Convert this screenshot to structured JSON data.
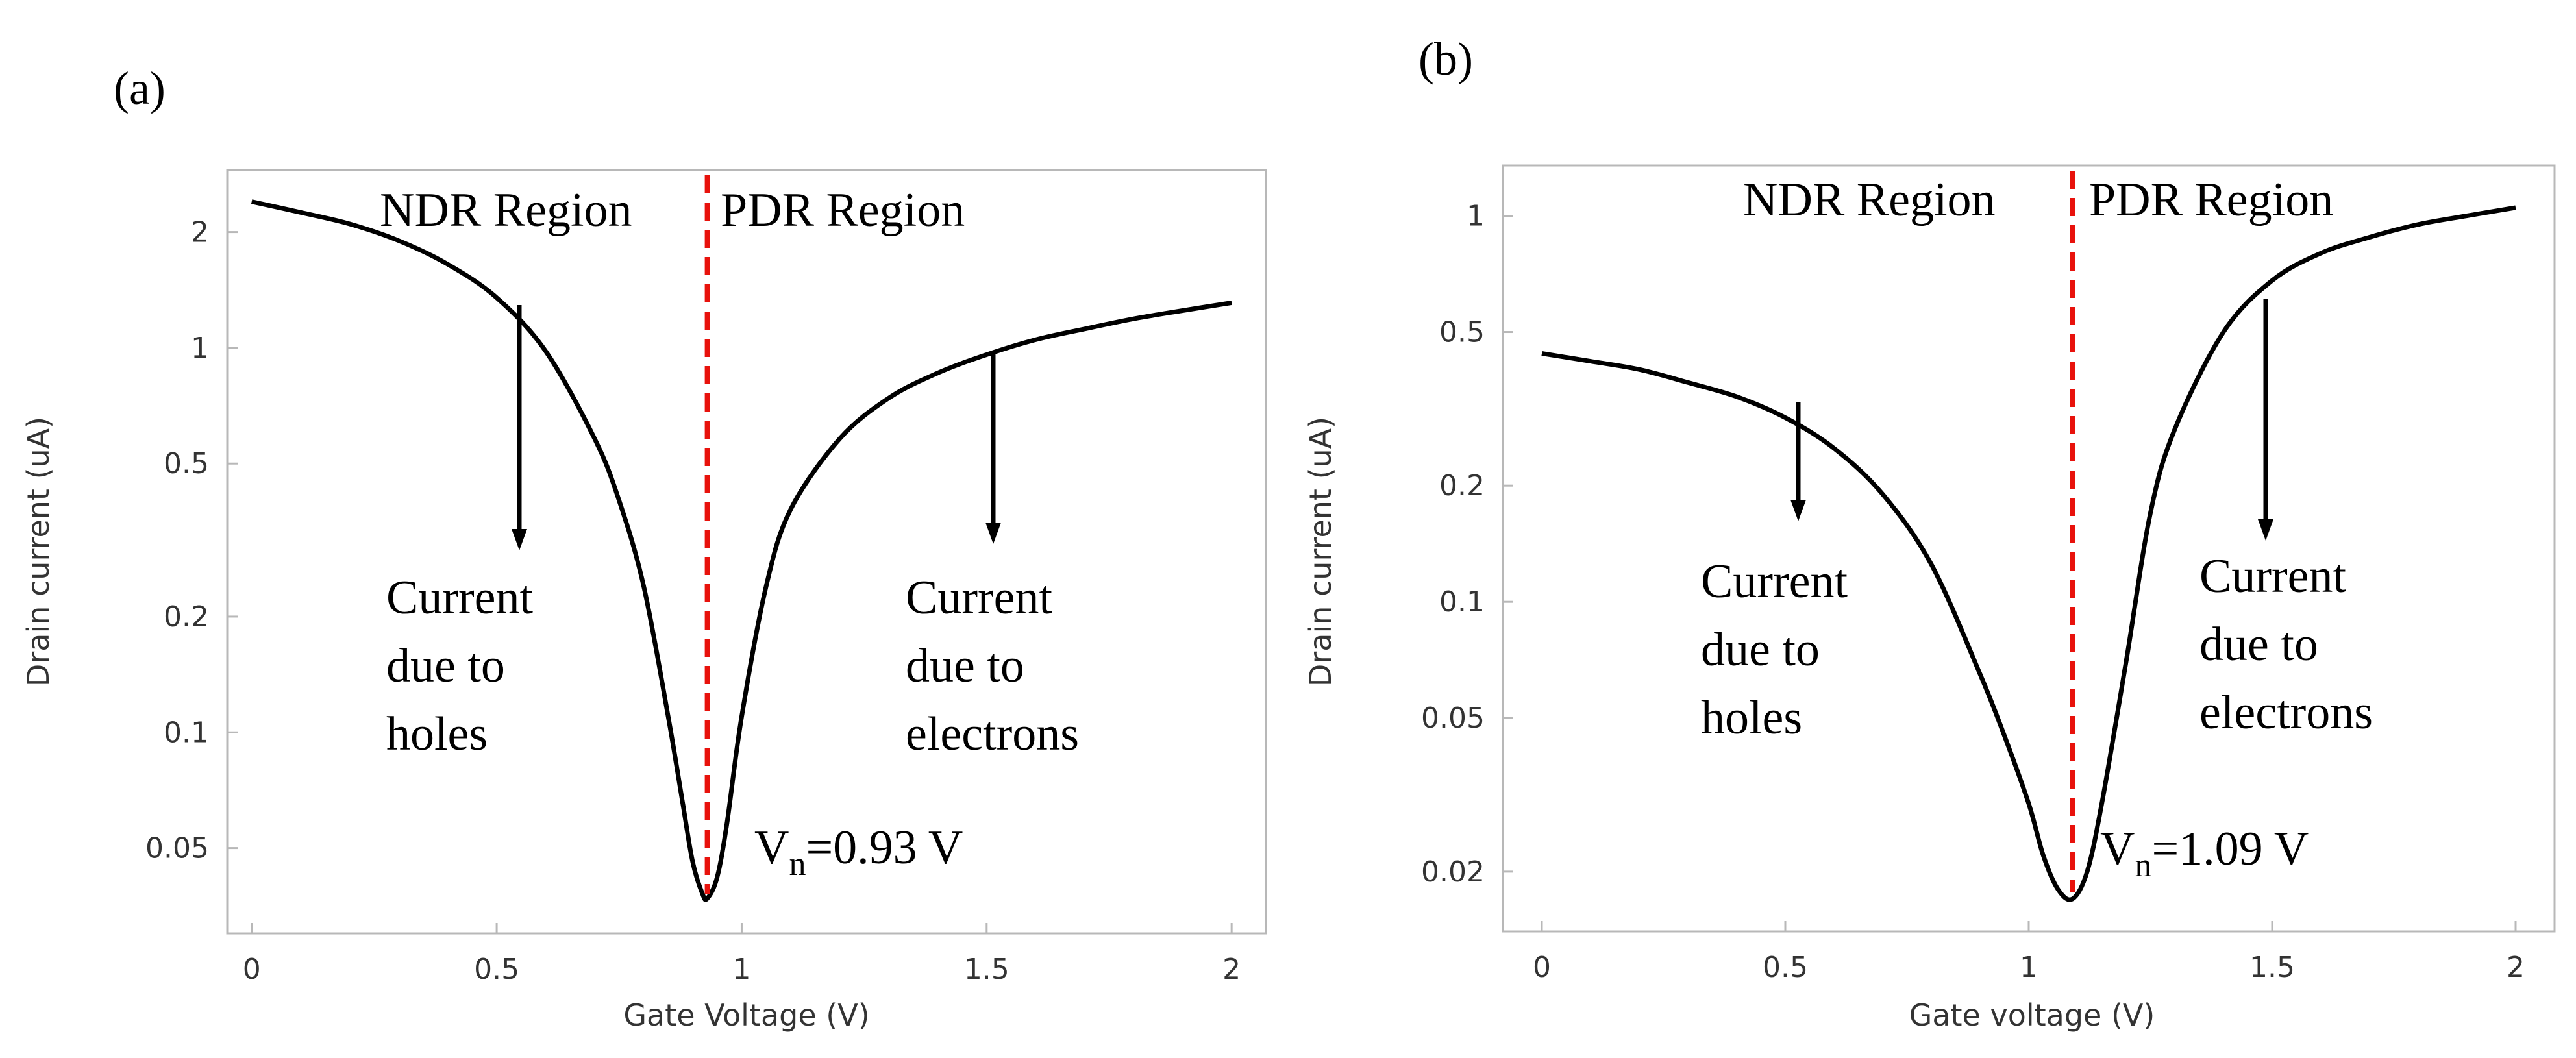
{
  "chart_data": [
    {
      "type": "line",
      "panel_label": "(a)",
      "xlabel": "Gate Voltage (V)",
      "ylabel": "Drain current (uA)",
      "yscale": "log",
      "xlim": [
        -0.05,
        2.07
      ],
      "ylim": [
        0.03,
        2.9
      ],
      "x_ticks": [
        0,
        0.5,
        1,
        1.5,
        2
      ],
      "x_tick_labels": [
        "0",
        "0.5",
        "1",
        "1.5",
        "2"
      ],
      "y_ticks": [
        0.05,
        0.1,
        0.2,
        0.5,
        1,
        2
      ],
      "y_tick_labels": [
        "0.05",
        "0.1",
        "0.2",
        "0.5",
        "1",
        "2"
      ],
      "series": [
        {
          "name": "Drain current",
          "x": [
            0,
            0.1,
            0.2,
            0.3,
            0.4,
            0.5,
            0.6,
            0.7,
            0.75,
            0.8,
            0.85,
            0.88,
            0.9,
            0.92,
            0.93,
            0.95,
            0.97,
            1.0,
            1.05,
            1.1,
            1.2,
            1.3,
            1.4,
            1.5,
            1.6,
            1.7,
            1.8,
            1.9,
            2.0
          ],
          "y": [
            2.4,
            2.25,
            2.1,
            1.9,
            1.65,
            1.35,
            0.98,
            0.58,
            0.4,
            0.24,
            0.11,
            0.065,
            0.046,
            0.038,
            0.037,
            0.042,
            0.058,
            0.11,
            0.24,
            0.38,
            0.58,
            0.74,
            0.86,
            0.96,
            1.05,
            1.12,
            1.19,
            1.25,
            1.31
          ]
        }
      ],
      "threshold": {
        "x": 0.93,
        "label_base": "V",
        "label_sub": "n",
        "label_value": "=0.93 V"
      },
      "region_labels": [
        "NDR Region",
        "PDR Region"
      ],
      "annotations": [
        {
          "lines": [
            "Current",
            "due to",
            "holes"
          ],
          "arrow_x": 0.53
        },
        {
          "lines": [
            "Current",
            "due to",
            "electrons"
          ],
          "arrow_x": 1.5
        }
      ]
    },
    {
      "type": "line",
      "panel_label": "(b)",
      "xlabel": "Gate voltage (V)",
      "ylabel": "Drain current (uA)",
      "yscale": "log",
      "xlim": [
        -0.08,
        2.08
      ],
      "ylim": [
        0.014,
        1.35
      ],
      "x_ticks": [
        0,
        0.5,
        1,
        1.5,
        2
      ],
      "x_tick_labels": [
        "0",
        "0.5",
        "1",
        "1.5",
        "2"
      ],
      "y_ticks": [
        0.02,
        0.05,
        0.1,
        0.2,
        0.5,
        1
      ],
      "y_tick_labels": [
        "0.02",
        "0.05",
        "0.1",
        "0.2",
        "0.5",
        "1"
      ],
      "series": [
        {
          "name": "Drain current",
          "x": [
            0,
            0.1,
            0.2,
            0.3,
            0.4,
            0.5,
            0.6,
            0.7,
            0.8,
            0.9,
            0.95,
            1.0,
            1.03,
            1.06,
            1.09,
            1.12,
            1.15,
            1.2,
            1.25,
            1.3,
            1.4,
            1.5,
            1.6,
            1.7,
            1.8,
            1.9,
            2.0
          ],
          "y": [
            0.44,
            0.42,
            0.4,
            0.37,
            0.34,
            0.3,
            0.25,
            0.19,
            0.125,
            0.065,
            0.045,
            0.03,
            0.022,
            0.018,
            0.017,
            0.02,
            0.03,
            0.07,
            0.17,
            0.28,
            0.5,
            0.68,
            0.8,
            0.88,
            0.95,
            1.0,
            1.05
          ]
        }
      ],
      "threshold": {
        "x": 1.09,
        "label_base": "V",
        "label_sub": "n",
        "label_value": "=1.09 V"
      },
      "region_labels": [
        "NDR Region",
        "PDR Region"
      ],
      "annotations": [
        {
          "lines": [
            "Current",
            "due to",
            "holes"
          ],
          "arrow_x": 0.52
        },
        {
          "lines": [
            "Current",
            "due to",
            "electrons"
          ],
          "arrow_x": 1.47
        }
      ]
    }
  ]
}
